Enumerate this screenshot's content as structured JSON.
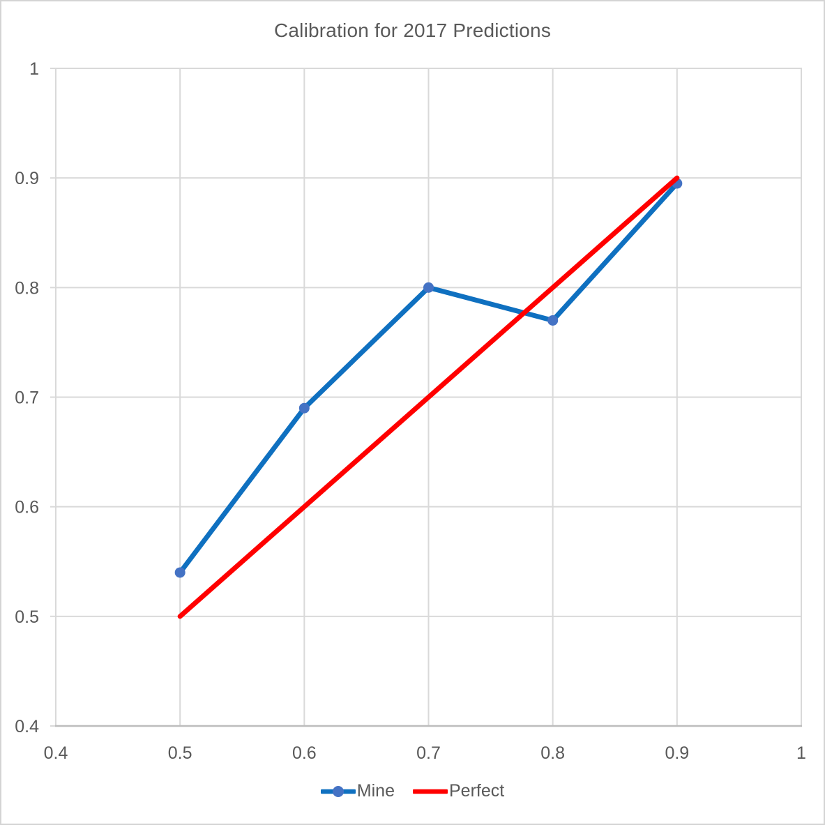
{
  "page": {
    "background": "#FFFFFF",
    "border_color": "#D4D4D4"
  },
  "chart_data": {
    "type": "line",
    "title": "Calibration for 2017 Predictions",
    "title_color": "#595959",
    "grid": true,
    "gridline_color": "#D9D9D9",
    "axis_line_color": "#BDBDBD",
    "tick_label_color": "#595959",
    "x_axis": {
      "min": 0.4,
      "max": 1,
      "ticks": [
        0.4,
        0.5,
        0.6,
        0.7,
        0.8,
        0.9,
        1
      ],
      "tick_labels": [
        "0.4",
        "0.5",
        "0.6",
        "0.7",
        "0.8",
        "0.9",
        "1"
      ]
    },
    "y_axis": {
      "min": 0.4,
      "max": 1,
      "ticks": [
        0.4,
        0.5,
        0.6,
        0.7,
        0.8,
        0.9,
        1
      ],
      "tick_labels": [
        "0.4",
        "0.5",
        "0.6",
        "0.7",
        "0.8",
        "0.9",
        "1"
      ]
    },
    "series": [
      {
        "name": "Mine",
        "color": "#0F70C0",
        "marker": true,
        "marker_color": "#4472C4",
        "x": [
          0.5,
          0.6,
          0.7,
          0.8,
          0.9
        ],
        "y": [
          0.54,
          0.69,
          0.8,
          0.77,
          0.895
        ]
      },
      {
        "name": "Perfect",
        "color": "#FF0000",
        "marker": false,
        "x": [
          0.5,
          0.9
        ],
        "y": [
          0.5,
          0.9
        ]
      }
    ],
    "legend": {
      "position": "bottom",
      "entries": [
        "Mine",
        "Perfect"
      ]
    }
  }
}
